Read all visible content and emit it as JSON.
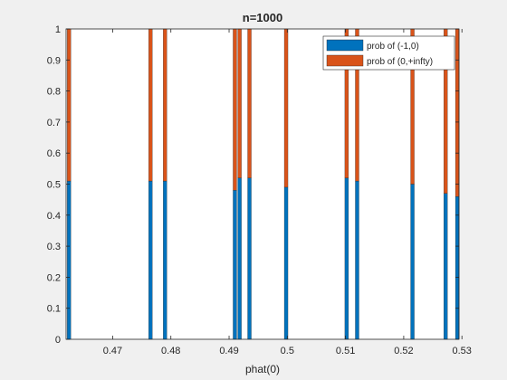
{
  "chart_data": {
    "type": "bar",
    "stacked": true,
    "title": "n=1000",
    "xlabel": "phat(0)",
    "ylabel": "",
    "xlim": [
      0.462,
      0.5295
    ],
    "ylim": [
      0,
      1
    ],
    "grid": false,
    "legend_position": "top-right",
    "x_ticks": [
      0.47,
      0.48,
      0.49,
      0.5,
      0.51,
      0.52,
      0.53
    ],
    "x_tick_labels": [
      "0.47",
      "0.48",
      "0.49",
      "0.5",
      "0.51",
      "0.52",
      "0.53"
    ],
    "y_ticks": [
      0,
      0.1,
      0.2,
      0.3,
      0.4,
      0.5,
      0.6,
      0.7,
      0.8,
      0.9,
      1
    ],
    "y_tick_labels": [
      "0",
      "0.1",
      "0.2",
      "0.3",
      "0.4",
      "0.5",
      "0.6",
      "0.7",
      "0.8",
      "0.9",
      "1"
    ],
    "x": [
      0.4625,
      0.4765,
      0.479,
      0.491,
      0.4918,
      0.4935,
      0.4998,
      0.5102,
      0.512,
      0.5215,
      0.5272,
      0.5292
    ],
    "series": [
      {
        "name": "prob of (-1,0)",
        "color": "#0072bd",
        "values": [
          0.51,
          0.51,
          0.51,
          0.48,
          0.52,
          0.52,
          0.49,
          0.52,
          0.51,
          0.5,
          0.47,
          0.46
        ]
      },
      {
        "name": "prob of (0,+infty)",
        "color": "#d95319",
        "values": [
          0.49,
          0.49,
          0.49,
          0.52,
          0.48,
          0.48,
          0.51,
          0.48,
          0.49,
          0.5,
          0.53,
          0.54
        ]
      }
    ]
  }
}
